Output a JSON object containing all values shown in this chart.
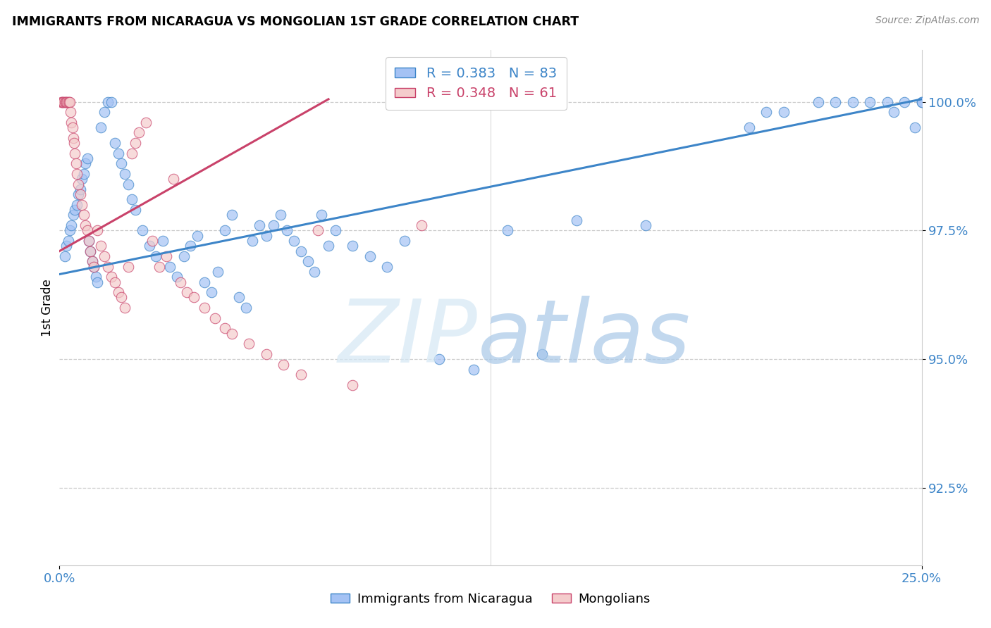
{
  "title": "IMMIGRANTS FROM NICARAGUA VS MONGOLIAN 1ST GRADE CORRELATION CHART",
  "source": "Source: ZipAtlas.com",
  "ylabel": "1st Grade",
  "xlim": [
    0.0,
    25.0
  ],
  "ylim": [
    91.0,
    101.0
  ],
  "ytick_vals": [
    92.5,
    95.0,
    97.5,
    100.0
  ],
  "xtick_positions": [
    0.0,
    25.0
  ],
  "xtick_labels": [
    "0.0%",
    "25.0%"
  ],
  "legend_blue_r": "0.383",
  "legend_blue_n": "83",
  "legend_pink_r": "0.348",
  "legend_pink_n": "61",
  "blue_face": "#a4c2f4",
  "blue_edge": "#3d85c8",
  "pink_face": "#f4cccc",
  "pink_edge": "#c9426a",
  "trendline_blue": "#3d85c8",
  "trendline_pink": "#c9426a",
  "grid_color": "#cccccc",
  "blue_trendline_x": [
    0.0,
    25.0
  ],
  "blue_trendline_y": [
    96.65,
    100.05
  ],
  "pink_trendline_x": [
    0.0,
    7.8
  ],
  "pink_trendline_y": [
    97.1,
    100.05
  ],
  "blue_x": [
    0.15,
    0.2,
    0.25,
    0.3,
    0.35,
    0.4,
    0.45,
    0.5,
    0.55,
    0.6,
    0.65,
    0.7,
    0.75,
    0.8,
    0.85,
    0.9,
    0.95,
    1.0,
    1.05,
    1.1,
    1.2,
    1.3,
    1.4,
    1.5,
    1.6,
    1.7,
    1.8,
    1.9,
    2.0,
    2.1,
    2.2,
    2.4,
    2.6,
    2.8,
    3.0,
    3.2,
    3.4,
    3.6,
    3.8,
    4.0,
    4.2,
    4.4,
    4.6,
    4.8,
    5.0,
    5.2,
    5.4,
    5.6,
    5.8,
    6.0,
    6.2,
    6.4,
    6.6,
    6.8,
    7.0,
    7.2,
    7.4,
    7.6,
    7.8,
    8.0,
    8.5,
    9.0,
    9.5,
    10.0,
    11.0,
    12.0,
    13.0,
    14.0,
    15.0,
    17.0,
    20.0,
    20.5,
    21.0,
    22.0,
    22.5,
    23.0,
    23.5,
    24.0,
    24.2,
    24.5,
    24.8,
    25.0,
    25.0
  ],
  "blue_y": [
    97.0,
    97.2,
    97.3,
    97.5,
    97.6,
    97.8,
    97.9,
    98.0,
    98.2,
    98.3,
    98.5,
    98.6,
    98.8,
    98.9,
    97.3,
    97.1,
    96.9,
    96.8,
    96.6,
    96.5,
    99.5,
    99.8,
    100.0,
    100.0,
    99.2,
    99.0,
    98.8,
    98.6,
    98.4,
    98.1,
    97.9,
    97.5,
    97.2,
    97.0,
    97.3,
    96.8,
    96.6,
    97.0,
    97.2,
    97.4,
    96.5,
    96.3,
    96.7,
    97.5,
    97.8,
    96.2,
    96.0,
    97.3,
    97.6,
    97.4,
    97.6,
    97.8,
    97.5,
    97.3,
    97.1,
    96.9,
    96.7,
    97.8,
    97.2,
    97.5,
    97.2,
    97.0,
    96.8,
    97.3,
    95.0,
    94.8,
    97.5,
    95.1,
    97.7,
    97.6,
    99.5,
    99.8,
    99.8,
    100.0,
    100.0,
    100.0,
    100.0,
    100.0,
    99.8,
    100.0,
    99.5,
    100.0,
    100.0
  ],
  "pink_x": [
    0.05,
    0.08,
    0.1,
    0.12,
    0.15,
    0.18,
    0.2,
    0.22,
    0.25,
    0.28,
    0.3,
    0.32,
    0.35,
    0.38,
    0.4,
    0.42,
    0.45,
    0.48,
    0.5,
    0.55,
    0.6,
    0.65,
    0.7,
    0.75,
    0.8,
    0.85,
    0.9,
    0.95,
    1.0,
    1.1,
    1.2,
    1.3,
    1.4,
    1.5,
    1.6,
    1.7,
    1.8,
    1.9,
    2.0,
    2.1,
    2.2,
    2.3,
    2.5,
    2.7,
    2.9,
    3.1,
    3.3,
    3.5,
    3.7,
    3.9,
    4.2,
    4.5,
    4.8,
    5.0,
    5.5,
    6.0,
    6.5,
    7.0,
    7.5,
    8.5,
    10.5
  ],
  "pink_y": [
    100.0,
    100.0,
    100.0,
    100.0,
    100.0,
    100.0,
    100.0,
    100.0,
    100.0,
    100.0,
    100.0,
    99.8,
    99.6,
    99.5,
    99.3,
    99.2,
    99.0,
    98.8,
    98.6,
    98.4,
    98.2,
    98.0,
    97.8,
    97.6,
    97.5,
    97.3,
    97.1,
    96.9,
    96.8,
    97.5,
    97.2,
    97.0,
    96.8,
    96.6,
    96.5,
    96.3,
    96.2,
    96.0,
    96.8,
    99.0,
    99.2,
    99.4,
    99.6,
    97.3,
    96.8,
    97.0,
    98.5,
    96.5,
    96.3,
    96.2,
    96.0,
    95.8,
    95.6,
    95.5,
    95.3,
    95.1,
    94.9,
    94.7,
    97.5,
    94.5,
    97.6
  ]
}
